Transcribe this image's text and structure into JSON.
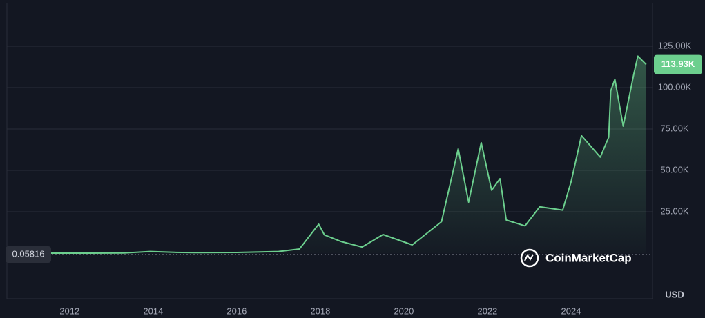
{
  "chart_data": {
    "type": "line",
    "x": [
      2010.55,
      2011.5,
      2012.5,
      2013.3,
      2013.93,
      2014.5,
      2015.0,
      2016.0,
      2017.0,
      2017.5,
      2017.96,
      2018.1,
      2018.5,
      2019.0,
      2019.5,
      2020.2,
      2020.9,
      2021.3,
      2021.55,
      2021.85,
      2022.1,
      2022.3,
      2022.45,
      2022.9,
      2023.25,
      2023.8,
      2024.0,
      2024.25,
      2024.7,
      2024.9,
      2024.95,
      2025.05,
      2025.25,
      2025.5,
      2025.6,
      2025.8
    ],
    "values": [
      0.06,
      5,
      12,
      130,
      1000,
      500,
      300,
      430,
      1000,
      2500,
      17500,
      11000,
      7000,
      3700,
      11250,
      5000,
      19000,
      63000,
      30800,
      66700,
      38000,
      45000,
      20000,
      16500,
      28000,
      26000,
      43000,
      71000,
      58000,
      70000,
      98000,
      105000,
      76700,
      108000,
      119000,
      113930
    ],
    "color": "#6ccf8e",
    "xlim": [
      2010.5,
      2025.95
    ],
    "xticks": [
      2012,
      2014,
      2016,
      2018,
      2020,
      2022,
      2024
    ],
    "ylim": [
      0,
      150000
    ],
    "yticks": [
      {
        "value": 25000,
        "label": "25.00K"
      },
      {
        "value": 50000,
        "label": "50.00K"
      },
      {
        "value": 75000,
        "label": "75.00K"
      },
      {
        "value": 100000,
        "label": "100.00K"
      },
      {
        "value": 125000,
        "label": "125.00K"
      }
    ],
    "grid": true,
    "current_price": {
      "value": 113930,
      "label": "113.93K"
    },
    "start_price": {
      "value": 0.05816,
      "label": "0.05816"
    },
    "currency": "USD",
    "watermark": "CoinMarketCap"
  }
}
